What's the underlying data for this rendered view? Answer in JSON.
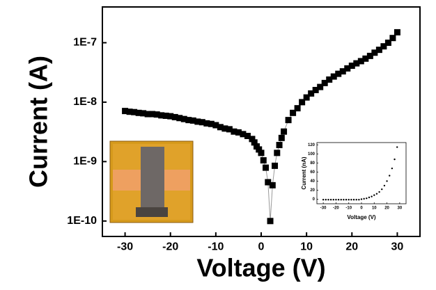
{
  "chart_data": [
    {
      "type": "scatter",
      "line": true,
      "marker": "square",
      "color": "#000000",
      "line_color": "#999999",
      "x_label": "Voltage (V)",
      "y_label": "Current (A)",
      "yscale": "log",
      "xlim": [
        -35,
        35
      ],
      "xticks": [
        -30,
        -20,
        -10,
        0,
        10,
        20,
        30
      ],
      "ylim": [
        5.5e-11,
        4e-07
      ],
      "yticks": [
        {
          "value": 1e-10,
          "label": "1E-10"
        },
        {
          "value": 1e-09,
          "label": "1E-9"
        },
        {
          "value": 1e-08,
          "label": "1E-8"
        },
        {
          "value": 1e-07,
          "label": "1E-7"
        }
      ],
      "x": [
        -30,
        -29,
        -28,
        -27,
        -26,
        -25,
        -24,
        -23,
        -22,
        -21,
        -20,
        -19,
        -18,
        -17,
        -16,
        -15,
        -14,
        -13,
        -12,
        -11,
        -10,
        -9,
        -8,
        -7,
        -6,
        -5,
        -4,
        -3,
        -2,
        -1.5,
        -1,
        -0.5,
        0,
        0.5,
        1,
        1.5,
        2,
        2.5,
        3,
        3.5,
        4,
        4.5,
        5,
        6,
        7,
        8,
        9,
        10,
        11,
        12,
        13,
        14,
        15,
        16,
        17,
        18,
        19,
        20,
        21,
        22,
        23,
        24,
        25,
        26,
        27,
        28,
        29,
        30
      ],
      "values": [
        7.1e-09,
        6.9e-09,
        6.8e-09,
        6.6e-09,
        6.5e-09,
        6.3e-09,
        6.3e-09,
        6.2e-09,
        6e-09,
        5.9e-09,
        5.8e-09,
        5.6e-09,
        5.4e-09,
        5.2e-09,
        5e-09,
        4.9e-09,
        4.7e-09,
        4.6e-09,
        4.4e-09,
        4.3e-09,
        4.1e-09,
        3.8e-09,
        3.6e-09,
        3.5e-09,
        3.2e-09,
        3.1e-09,
        2.9e-09,
        2.7e-09,
        2.4e-09,
        2.1e-09,
        1.8e-09,
        1.6e-09,
        1.4e-09,
        1.05e-09,
        7.9e-10,
        4.5e-10,
        1e-10,
        4e-10,
        8.5e-10,
        1.4e-09,
        1.9e-09,
        2.5e-09,
        3.2e-09,
        5e-09,
        6.6e-09,
        7.9e-09,
        1e-08,
        1.2e-08,
        1.4e-08,
        1.6e-08,
        1.8e-08,
        2.1e-08,
        2.4e-08,
        2.7e-08,
        3e-08,
        3.3e-08,
        3.7e-08,
        4.1e-08,
        4.5e-08,
        4.9e-08,
        5.4e-08,
        6e-08,
        6.8e-08,
        7.6e-08,
        8.7e-08,
        1e-07,
        1.2e-07,
        1.5e-07
      ]
    },
    {
      "type": "scatter",
      "line": false,
      "marker": "circle",
      "color": "#000000",
      "x_label": "Voltage (V)",
      "y_label": "Current (nA)",
      "yscale": "linear",
      "xlim": [
        -35,
        35
      ],
      "xticks": [
        -30,
        -20,
        -10,
        0,
        10,
        20,
        30
      ],
      "ylim": [
        -10,
        125
      ],
      "yticks": [
        0,
        20,
        40,
        60,
        80,
        100,
        120
      ],
      "x": [
        -30,
        -28,
        -26,
        -24,
        -22,
        -20,
        -18,
        -16,
        -14,
        -12,
        -10,
        -8,
        -6,
        -4,
        -2,
        0,
        2,
        4,
        6,
        8,
        10,
        12,
        14,
        16,
        18,
        20,
        22,
        24,
        26,
        28
      ],
      "values": [
        -1,
        -1,
        -1,
        -1,
        -1,
        -1,
        -1,
        -1,
        -1,
        -1,
        -1,
        -1,
        -1,
        -1,
        -1,
        0,
        1,
        2,
        4,
        6,
        9,
        12,
        16,
        22,
        30,
        40,
        52,
        68,
        88,
        115
      ]
    }
  ]
}
